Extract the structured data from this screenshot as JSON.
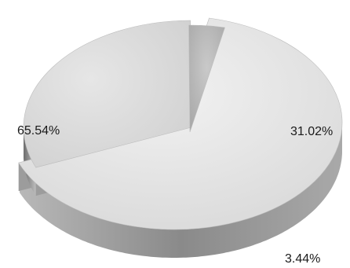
{
  "chart_data": {
    "type": "pie",
    "title": "",
    "slices": [
      {
        "label": "65.54%",
        "value": 65.54,
        "color": "#e4e4e4",
        "side_color": "#9a9a9a"
      },
      {
        "label": "31.02%",
        "value": 31.02,
        "color": "#dcdcdc",
        "side_color": "#8f8f8f"
      },
      {
        "label": "3.44%",
        "value": 3.44,
        "color": "#4a4a4a",
        "side_color": "#2c2c2c"
      }
    ],
    "style": "3d-exploded"
  }
}
